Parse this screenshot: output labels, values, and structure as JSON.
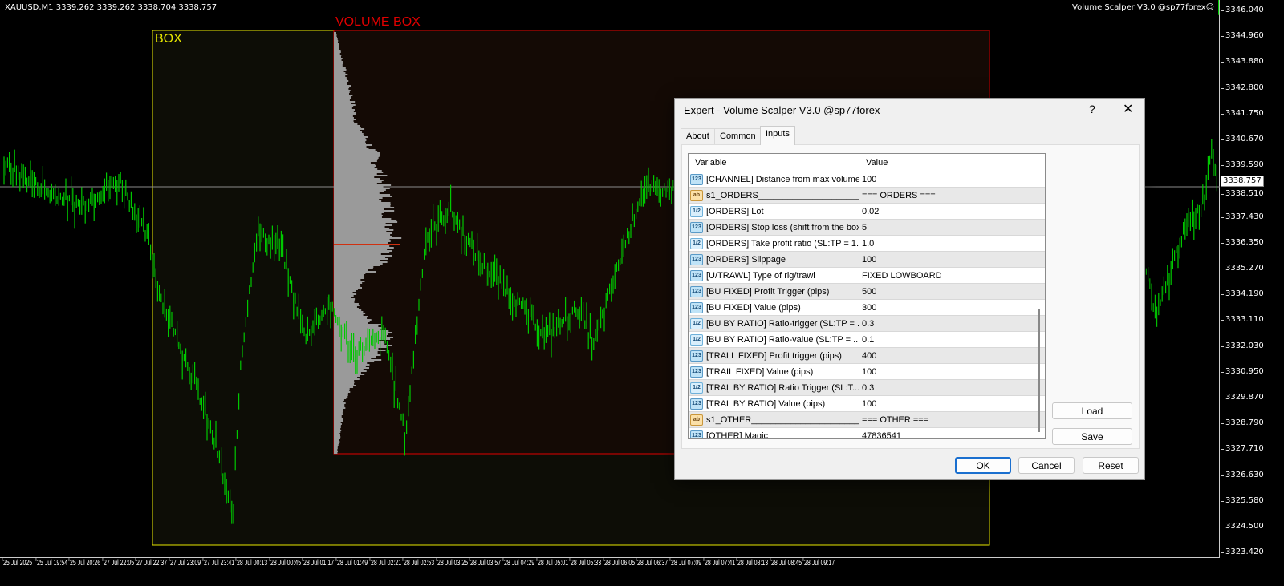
{
  "chart": {
    "symbol_info": "XAUUSD,M1  3339.262 3339.262 3338.704 3338.757",
    "ea_label": "Volume Scalper V3.0 @sp77forex☺",
    "box_label": "BOX",
    "volume_box_label": "VOLUME BOX",
    "current_price": "3338.757",
    "colors": {
      "candle": "#00c800",
      "box": "#e6e600",
      "volume_box": "#e00000",
      "profile": "#9a9a9a",
      "poc": "#d03010"
    },
    "price_ticks": [
      "3346.040",
      "3344.960",
      "3343.880",
      "3342.800",
      "3341.750",
      "3340.670",
      "3339.590",
      "3338.510",
      "3337.430",
      "3336.350",
      "3335.270",
      "3334.190",
      "3333.110",
      "3332.030",
      "3330.950",
      "3329.870",
      "3328.790",
      "3327.710",
      "3326.630",
      "3325.580",
      "3324.500",
      "3323.420"
    ],
    "time_ticks": [
      "25 Jul 2025",
      "25 Jul 19:54",
      "25 Jul 20:26",
      "27 Jul 22:05",
      "27 Jul 22:37",
      "27 Jul 23:09",
      "27 Jul 23:41",
      "28 Jul 00:13",
      "28 Jul 00:45",
      "28 Jul 01:17",
      "28 Jul 01:49",
      "28 Jul 02:21",
      "28 Jul 02:53",
      "28 Jul 03:25",
      "28 Jul 03:57",
      "28 Jul 04:29",
      "28 Jul 05:01",
      "28 Jul 05:33",
      "28 Jul 06:05",
      "28 Jul 06:37",
      "28 Jul 07:09",
      "28 Jul 07:41",
      "28 Jul 08:13",
      "28 Jul 08:45",
      "28 Jul 09:17"
    ]
  },
  "dialog": {
    "title": "Expert - Volume Scalper V3.0 @sp77forex",
    "help": "?",
    "close": "✕",
    "tabs": [
      "About",
      "Common",
      "Inputs"
    ],
    "active_tab": "Inputs",
    "columns": [
      "Variable",
      "Value"
    ],
    "rows": [
      {
        "icon": "123",
        "variable": "[CHANNEL] Distance from max volume...",
        "value": "100"
      },
      {
        "icon": "ab",
        "variable": "s1_ORDERS___________________________...",
        "value": "=== ORDERS ==="
      },
      {
        "icon": "1/2",
        "variable": "[ORDERS] Lot",
        "value": "0.02"
      },
      {
        "icon": "123",
        "variable": "[ORDERS] Stop loss (shift from the box)",
        "value": "5"
      },
      {
        "icon": "1/2",
        "variable": "[ORDERS] Take profit ratio (SL:TP = 1...",
        "value": "1.0"
      },
      {
        "icon": "123",
        "variable": "[ORDERS] Slippage",
        "value": "100"
      },
      {
        "icon": "123",
        "variable": "[U/TRAWL] Type of rig/trawl",
        "value": "FIXED LOWBOARD"
      },
      {
        "icon": "123",
        "variable": "[BU FIXED] Profit Trigger (pips)",
        "value": "500"
      },
      {
        "icon": "123",
        "variable": "[BU FIXED] Value (pips)",
        "value": "300"
      },
      {
        "icon": "1/2",
        "variable": "[BU BY RATIO] Ratio-trigger (SL:TP = ...",
        "value": "0.3"
      },
      {
        "icon": "1/2",
        "variable": "[BU BY RATIO] Ratio-value (SL:TP = ...",
        "value": "0.1"
      },
      {
        "icon": "123",
        "variable": "[TRALL FIXED] Profit trigger (pips)",
        "value": "400"
      },
      {
        "icon": "123",
        "variable": "[TRAIL FIXED] Value (pips)",
        "value": "100"
      },
      {
        "icon": "1/2",
        "variable": "[TRAL BY RATIO] Ratio Trigger (SL:T...",
        "value": "0.3"
      },
      {
        "icon": "123",
        "variable": "[TRAL BY RATIO] Value (pips)",
        "value": "100"
      },
      {
        "icon": "ab",
        "variable": "s1_OTHER___________________________...",
        "value": "=== OTHER ==="
      },
      {
        "icon": "123",
        "variable": "[OTHER] Magic",
        "value": "47836541"
      }
    ],
    "buttons": {
      "load": "Load",
      "save": "Save",
      "ok": "OK",
      "cancel": "Cancel",
      "reset": "Reset"
    }
  }
}
